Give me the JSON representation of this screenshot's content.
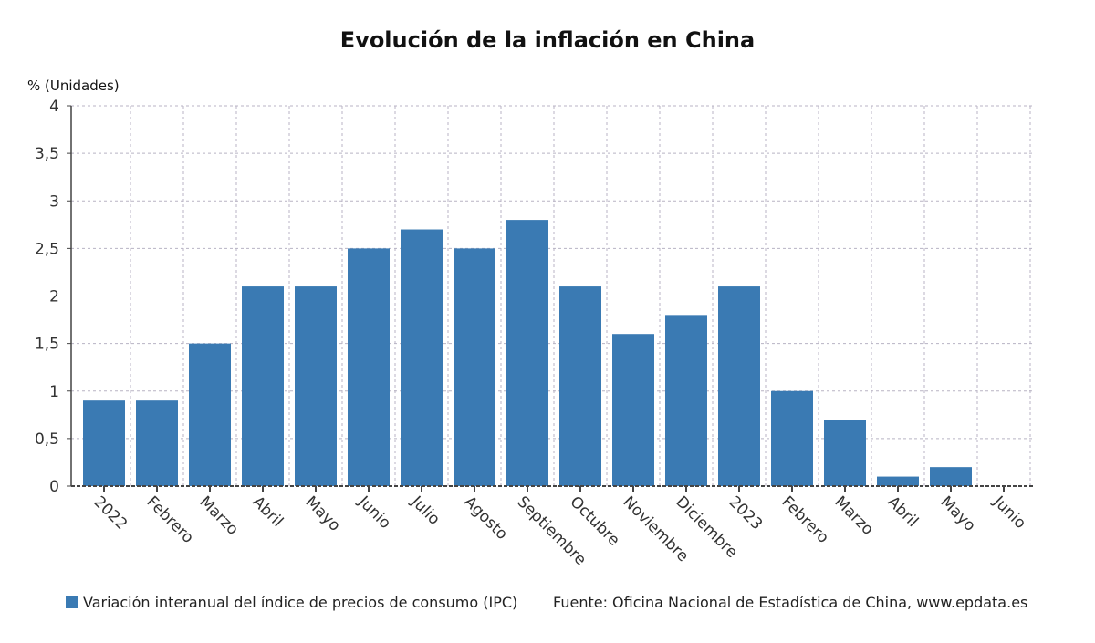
{
  "chart_data": {
    "type": "bar",
    "title": "Evolución de la inflación en China",
    "ylabel": "% (Unidades)",
    "xlabel": "",
    "ylim": [
      0,
      4
    ],
    "yticks": [
      0,
      0.5,
      1,
      1.5,
      2,
      2.5,
      3,
      3.5,
      4
    ],
    "ytick_labels": [
      "0",
      "0,5",
      "1",
      "1,5",
      "2",
      "2,5",
      "3",
      "3,5",
      "4"
    ],
    "categories": [
      "2022",
      "Febrero",
      "Marzo",
      "Abril",
      "Mayo",
      "Junio",
      "Julio",
      "Agosto",
      "Septiembre",
      "Octubre",
      "Noviembre",
      "Diciembre",
      "2023",
      "Febrero",
      "Marzo",
      "Abril",
      "Mayo",
      "Junio"
    ],
    "series": [
      {
        "name": "Variación interanual del índice de precios de consumo (IPC)",
        "values": [
          0.9,
          0.9,
          1.5,
          2.1,
          2.1,
          2.5,
          2.7,
          2.5,
          2.8,
          2.1,
          1.6,
          1.8,
          2.1,
          1.0,
          0.7,
          0.1,
          0.2,
          0.0
        ],
        "color": "#3a7ab3"
      }
    ],
    "grid": true,
    "legend_position": "bottom-left"
  },
  "source": "Fuente: Oficina Nacional de Estadística de China, www.epdata.es"
}
